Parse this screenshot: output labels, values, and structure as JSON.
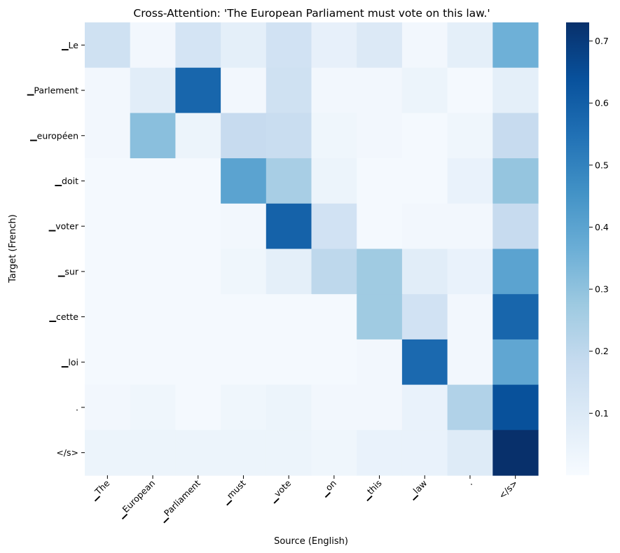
{
  "chart_data": {
    "type": "heatmap",
    "title": "Cross-Attention: 'The European Parliament must vote on this law.'",
    "xlabel": "Source (English)",
    "ylabel": "Target (French)",
    "x_categories": [
      "▁The",
      "▁European",
      "▁Parliament",
      "▁must",
      "▁vote",
      "▁on",
      "▁this",
      "▁law",
      ".",
      "</s>"
    ],
    "y_categories": [
      "▁Le",
      "▁Parlement",
      "▁européen",
      "▁doit",
      "▁voter",
      "▁sur",
      "▁cette",
      "▁loi",
      ".",
      "</s>"
    ],
    "values": [
      [
        0.15,
        0.02,
        0.13,
        0.07,
        0.14,
        0.06,
        0.1,
        0.02,
        0.07,
        0.36
      ],
      [
        0.02,
        0.08,
        0.58,
        0.02,
        0.15,
        0.02,
        0.02,
        0.04,
        0.01,
        0.07
      ],
      [
        0.02,
        0.31,
        0.04,
        0.18,
        0.17,
        0.03,
        0.02,
        0.01,
        0.03,
        0.18
      ],
      [
        0.01,
        0.01,
        0.01,
        0.4,
        0.25,
        0.04,
        0.01,
        0.01,
        0.05,
        0.29
      ],
      [
        0.01,
        0.01,
        0.01,
        0.02,
        0.59,
        0.14,
        0.01,
        0.02,
        0.02,
        0.18
      ],
      [
        0.01,
        0.01,
        0.01,
        0.03,
        0.07,
        0.2,
        0.27,
        0.08,
        0.05,
        0.4
      ],
      [
        0.01,
        0.01,
        0.01,
        0.01,
        0.01,
        0.01,
        0.27,
        0.14,
        0.02,
        0.58
      ],
      [
        0.01,
        0.01,
        0.01,
        0.01,
        0.01,
        0.01,
        0.02,
        0.57,
        0.02,
        0.39
      ],
      [
        0.02,
        0.03,
        0.01,
        0.03,
        0.04,
        0.02,
        0.02,
        0.05,
        0.23,
        0.64
      ],
      [
        0.04,
        0.04,
        0.04,
        0.04,
        0.04,
        0.03,
        0.05,
        0.05,
        0.09,
        0.73
      ]
    ],
    "colormap": "Blues",
    "color_range": [
      0,
      0.73
    ],
    "colorbar_ticks": [
      "0.1",
      "0.2",
      "0.3",
      "0.4",
      "0.5",
      "0.6",
      "0.7"
    ]
  }
}
